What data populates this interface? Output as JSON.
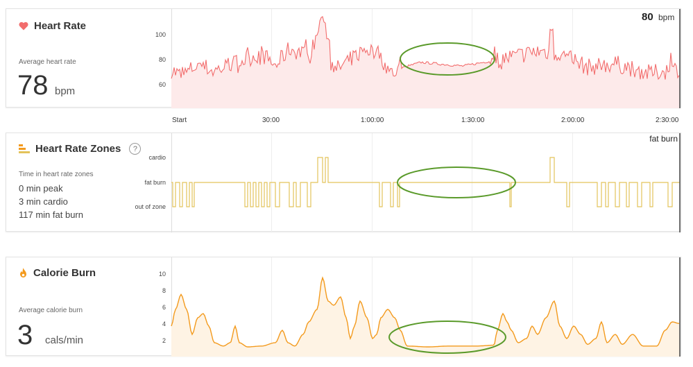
{
  "heart_rate": {
    "title": "Heart Rate",
    "subtitle": "Average heart rate",
    "value": "78",
    "unit": "bpm",
    "current_value": "80",
    "current_unit": "bpm",
    "yticks": [
      "100",
      "80",
      "60"
    ],
    "icon": "heart-icon",
    "color": "#f26d6d",
    "fill": "#fdeaea"
  },
  "x_axis": {
    "ticks": [
      "Start",
      "30:00",
      "1:00:00",
      "1:30:00",
      "2:00:00",
      "2:30:00"
    ]
  },
  "zones": {
    "title": "Heart Rate Zones",
    "help": "?",
    "subtitle": "Time in heart rate zones",
    "lines": [
      "0 min peak",
      "3 min cardio",
      "117 min fat burn"
    ],
    "current_zone": "fat burn",
    "levels": [
      "cardio",
      "fat burn",
      "out of zone"
    ],
    "icon": "zones-bars-icon",
    "color": "#e3c35a"
  },
  "calories": {
    "title": "Calorie Burn",
    "subtitle": "Average calorie burn",
    "value": "3",
    "unit": "cals/min",
    "yticks": [
      "10",
      "8",
      "6",
      "4",
      "2"
    ],
    "icon": "flame-icon",
    "color": "#f39a1d",
    "fill": "#fef3e4"
  },
  "annotation_color": "#5a9a2a"
}
